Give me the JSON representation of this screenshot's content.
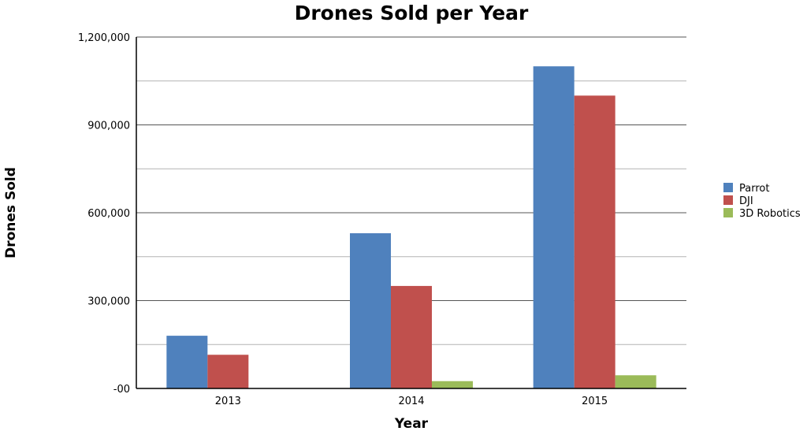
{
  "chart_data": {
    "type": "bar",
    "title": "Drones Sold per Year",
    "xlabel": "Year",
    "ylabel": "Drones Sold",
    "categories": [
      "2013",
      "2014",
      "2015"
    ],
    "series": [
      {
        "name": "Parrot",
        "color": "#4f81bd",
        "values": [
          180000,
          530000,
          1100000
        ]
      },
      {
        "name": "DJI",
        "color": "#c0504d",
        "values": [
          115000,
          350000,
          1000000
        ]
      },
      {
        "name": "3D Robotics",
        "color": "#9bbb59",
        "values": [
          0,
          25000,
          45000
        ]
      }
    ],
    "ylim": [
      0,
      1200000
    ],
    "y_ticks": [
      {
        "value": 0,
        "label": "-00"
      },
      {
        "value": 300000,
        "label": "300,000"
      },
      {
        "value": 600000,
        "label": "600,000"
      },
      {
        "value": 900000,
        "label": "900,000"
      },
      {
        "value": 1200000,
        "label": "1,200,000"
      }
    ],
    "minor_grid": [
      150000,
      450000,
      750000,
      1050000
    ],
    "grid": true,
    "legend_position": "right"
  }
}
